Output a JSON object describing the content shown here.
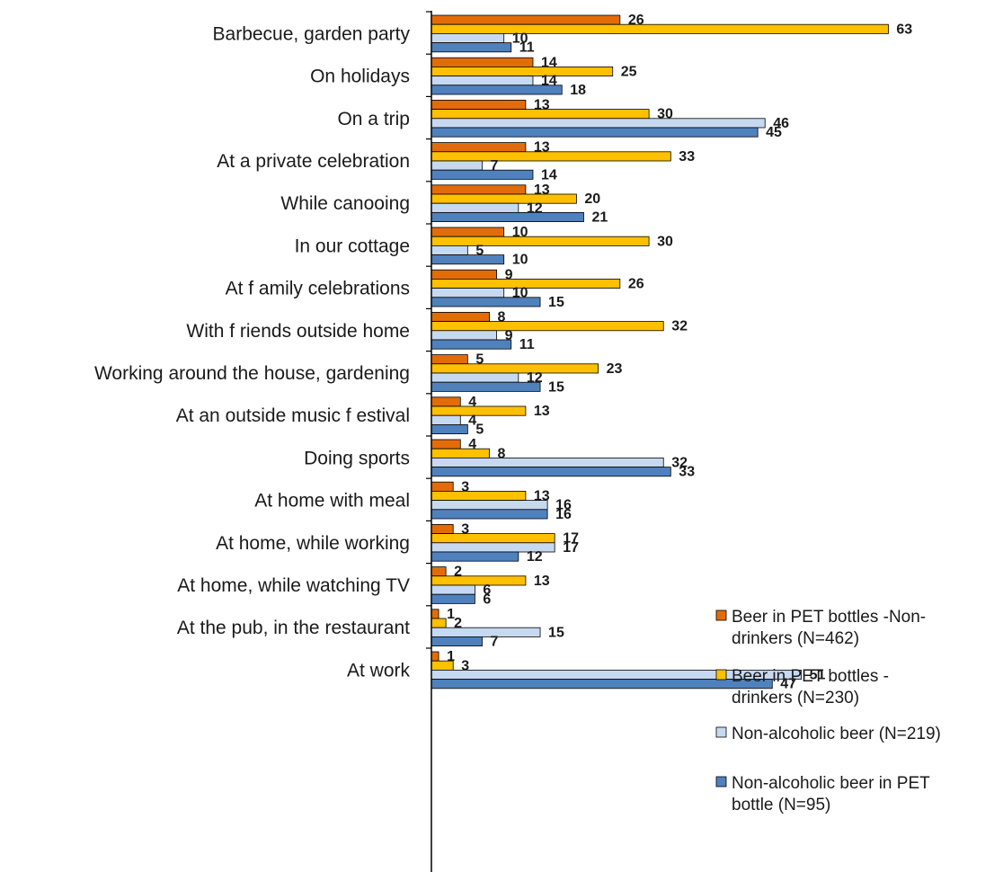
{
  "chart_data": {
    "type": "bar",
    "orientation": "horizontal",
    "categories": [
      "Barbecue, garden  party",
      "On holidays",
      "On a  trip",
      "At a private celebration",
      "While canooing",
      "In our cottage",
      "At f amily celebrations",
      "With f riends outside home",
      "Working around the house, gardening",
      "At an outside music f estival",
      "Doing sports",
      "At  home with meal",
      "At  home, while working",
      "At  home, while watching TV",
      "At the pub, in the restaurant",
      "At work"
    ],
    "series": [
      {
        "name": "Beer in PET bottles -Non-drinkers (N=462)",
        "legend_lines": [
          "Beer in PET bottles -Non-",
          "drinkers (N=462)"
        ],
        "color": "#E36C0A",
        "values": [
          26,
          14,
          13,
          13,
          13,
          10,
          9,
          8,
          5,
          4,
          4,
          3,
          3,
          2,
          1,
          1
        ]
      },
      {
        "name": "Beer in PET bottles - drinkers (N=230)",
        "legend_lines": [
          "Beer in PET bottles -",
          "drinkers (N=230)"
        ],
        "color": "#FFC000",
        "values": [
          63,
          25,
          30,
          33,
          20,
          30,
          26,
          32,
          23,
          13,
          8,
          13,
          17,
          13,
          2,
          3
        ]
      },
      {
        "name": "Non-alcoholic beer (N=219)",
        "legend_lines": [
          "Non-alcoholic beer (N=219)"
        ],
        "color": "#C6D9F1",
        "values": [
          10,
          14,
          46,
          7,
          12,
          5,
          10,
          9,
          12,
          4,
          32,
          16,
          17,
          6,
          15,
          51
        ]
      },
      {
        "name": "Non-alcoholic beer in PET bottle (N=95)",
        "legend_lines": [
          "Non-alcoholic beer in PET",
          "bottle (N=95)"
        ],
        "color": "#4F81BD",
        "values": [
          11,
          18,
          45,
          14,
          21,
          10,
          15,
          11,
          15,
          5,
          33,
          16,
          12,
          6,
          7,
          47
        ]
      }
    ],
    "xlim": [
      0,
      78
    ],
    "grid": false,
    "legend_position": "right",
    "title": "",
    "xlabel": "",
    "ylabel": ""
  }
}
